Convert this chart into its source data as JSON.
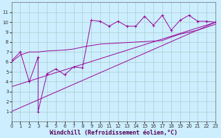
{
  "background_color": "#cceeff",
  "grid_color": "#aacccc",
  "line_color": "#990099",
  "xlim": [
    0,
    23
  ],
  "ylim": [
    0,
    12
  ],
  "xticks": [
    0,
    1,
    2,
    3,
    4,
    5,
    6,
    7,
    8,
    9,
    10,
    11,
    12,
    13,
    14,
    15,
    16,
    17,
    18,
    19,
    20,
    21,
    22,
    23
  ],
  "yticks": [
    1,
    2,
    3,
    4,
    5,
    6,
    7,
    8,
    9,
    10,
    11
  ],
  "xlabel": "Windchill (Refroidissement éolien,°C)",
  "line1_x": [
    0,
    23
  ],
  "line1_y": [
    1.0,
    10.0
  ],
  "line2_x": [
    0,
    23
  ],
  "line2_y": [
    3.5,
    10.0
  ],
  "smooth1_x": [
    0,
    1,
    2,
    3,
    4,
    5,
    6,
    7,
    8,
    9,
    10,
    11,
    12,
    13,
    14,
    15,
    16,
    17,
    18,
    19,
    20,
    21,
    22,
    23
  ],
  "smooth1_y": [
    6.0,
    6.7,
    7.0,
    7.0,
    7.1,
    7.15,
    7.2,
    7.3,
    7.5,
    7.65,
    7.8,
    7.85,
    7.9,
    7.95,
    8.0,
    8.05,
    8.1,
    8.15,
    8.5,
    8.8,
    9.0,
    9.2,
    9.5,
    9.8
  ],
  "scatter_x": [
    0,
    1,
    2,
    3,
    3,
    4,
    5,
    6,
    7,
    8,
    9,
    10,
    11,
    12,
    13,
    14,
    15,
    16,
    17,
    18,
    19,
    20,
    21,
    22,
    23
  ],
  "scatter_y": [
    6.1,
    7.0,
    4.0,
    6.5,
    1.0,
    4.8,
    5.3,
    4.7,
    5.5,
    5.4,
    10.2,
    10.1,
    9.6,
    10.1,
    9.6,
    9.6,
    10.6,
    9.7,
    10.7,
    9.2,
    10.2,
    10.7,
    10.1,
    10.1,
    10.0
  ],
  "tick_fontsize": 5,
  "xlabel_fontsize": 6
}
